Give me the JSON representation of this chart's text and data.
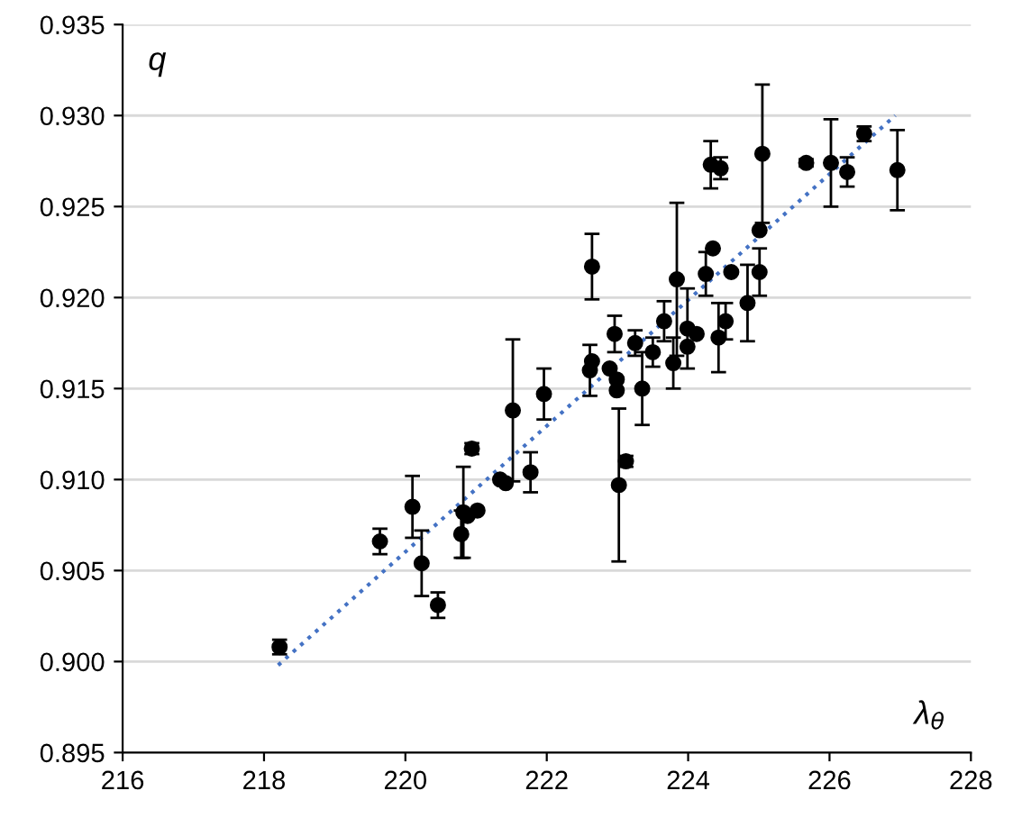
{
  "chart_data": {
    "type": "scatter",
    "xlabel": "λ$_{θ}$",
    "ylabel": "q",
    "xlim": [
      216,
      228
    ],
    "xticks": [
      216,
      218,
      220,
      222,
      224,
      226,
      228
    ],
    "ylim": [
      0.895,
      0.935
    ],
    "yticks": [
      0.895,
      {
        "value": 0.9,
        "label": "0.900"
      },
      0.905,
      {
        "value": 0.91,
        "label": "0.910"
      },
      0.915,
      {
        "value": 0.92,
        "label": "0.920"
      },
      0.925,
      {
        "value": 0.93,
        "label": "0.930"
      },
      0.935
    ],
    "grid": "y",
    "legend": false,
    "series": [
      {
        "color": "#000000",
        "marker": "circle",
        "x": [
          218.22,
          219.64,
          220.1,
          220.23,
          220.46,
          220.79,
          220.82,
          220.88,
          220.94,
          221.02,
          221.34,
          221.42,
          221.52,
          221.77,
          221.96,
          222.61,
          222.64,
          222.64,
          222.89,
          222.96,
          222.99,
          222.99,
          223.02,
          223.12,
          223.25,
          223.35,
          223.5,
          223.66,
          223.79,
          223.84,
          223.99,
          223.99,
          224.12,
          224.25,
          224.32,
          224.35,
          224.43,
          224.46,
          224.53,
          224.61,
          224.84,
          225.01,
          225.01,
          225.05,
          225.67,
          226.02,
          226.25,
          226.49,
          226.96
        ],
        "values": [
          0.9008,
          0.9066,
          0.9085,
          0.9054,
          0.9031,
          0.907,
          0.9082,
          0.908,
          0.9117,
          0.9083,
          0.91,
          0.9098,
          0.9138,
          0.9104,
          0.9147,
          0.916,
          0.9165,
          0.9217,
          0.9161,
          0.918,
          0.9155,
          0.9149,
          0.9097,
          0.911,
          0.9175,
          0.915,
          0.917,
          0.9187,
          0.9164,
          0.921,
          0.9183,
          0.9173,
          0.918,
          0.9213,
          0.9273,
          0.9227,
          0.9178,
          0.9271,
          0.9187,
          0.9214,
          0.9197,
          0.9214,
          0.9237,
          0.9279,
          0.9274,
          0.9274,
          0.9269,
          0.929,
          0.927
        ],
        "errors": [
          0.0004,
          0.0007,
          0.0017,
          0.0018,
          0.0007,
          0.0013,
          0.0025,
          null,
          0.0003,
          null,
          null,
          null,
          0.0039,
          0.0011,
          0.0014,
          0.0014,
          null,
          0.0018,
          null,
          0.001,
          null,
          null,
          0.0042,
          0.0003,
          0.0007,
          0.002,
          0.0008,
          0.0011,
          0.0014,
          0.0042,
          0.0022,
          null,
          null,
          0.0012,
          0.0013,
          null,
          0.0019,
          0.0006,
          0.001,
          null,
          0.0021,
          0.0013,
          null,
          0.0038,
          0.0002,
          0.0024,
          0.0008,
          0.0004,
          0.0022
        ]
      },
      {
        "type": "line",
        "color": "#4472c4",
        "line_style": "dotted",
        "marker": "none",
        "x": [
          218.2,
          226.93
        ],
        "values": [
          0.8998,
          0.93
        ]
      }
    ]
  }
}
